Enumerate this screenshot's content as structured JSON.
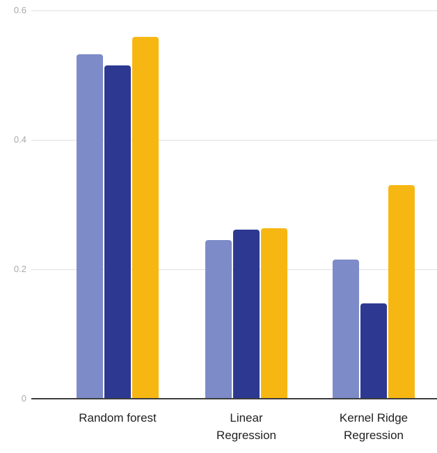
{
  "chart_data": {
    "type": "bar",
    "title": "",
    "xlabel": "",
    "ylabel": "",
    "ylim": [
      0,
      0.6
    ],
    "grid": true,
    "legend_position": "none",
    "categories": [
      "Random forest",
      "Linear\nRegression",
      "Kernel Ridge\nRegression"
    ],
    "series": [
      {
        "name": "light-blue",
        "color": "#7D8BC8",
        "values": [
          0.532,
          0.245,
          0.215
        ]
      },
      {
        "name": "dark-blue",
        "color": "#2D3991",
        "values": [
          0.515,
          0.261,
          0.147
        ]
      },
      {
        "name": "yellow",
        "color": "#F7B713",
        "values": [
          0.559,
          0.263,
          0.33
        ]
      }
    ],
    "y_ticks": [
      {
        "value": 0.0,
        "label": "0"
      },
      {
        "value": 0.2,
        "label": "0.2"
      },
      {
        "value": 0.4,
        "label": "0.4"
      },
      {
        "value": 0.6,
        "label": "0.6"
      }
    ]
  },
  "colors": {
    "background": "#FFFFFF",
    "gridline": "#E0E0E0",
    "axis_line": "#3C3C3C",
    "tick_label": "#A9A9A9",
    "category_label": "#212121"
  }
}
